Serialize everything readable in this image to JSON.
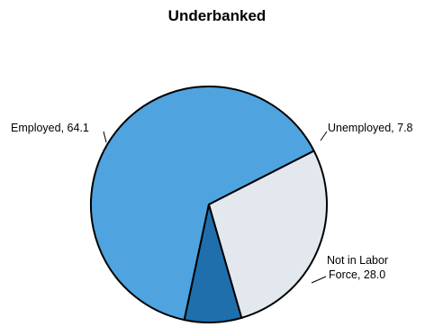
{
  "chart_data": {
    "type": "pie",
    "title": "Underbanked",
    "slices": [
      {
        "name": "Employed",
        "value": 64.1,
        "label_lines": [
          "Employed, 64.1"
        ],
        "color": "#4fa3de"
      },
      {
        "name": "Unemployed",
        "value": 7.8,
        "label_lines": [
          "Unemployed, 7.8"
        ],
        "color": "#1f6fad"
      },
      {
        "name": "Not in Labor Force",
        "value": 28.0,
        "label_lines": [
          "Not in Labor",
          "Force, 28.0"
        ],
        "color": "#e3e8ef"
      }
    ],
    "start_angle_deg": 27,
    "direction": "counterclockwise",
    "stroke_color": "#000000"
  }
}
